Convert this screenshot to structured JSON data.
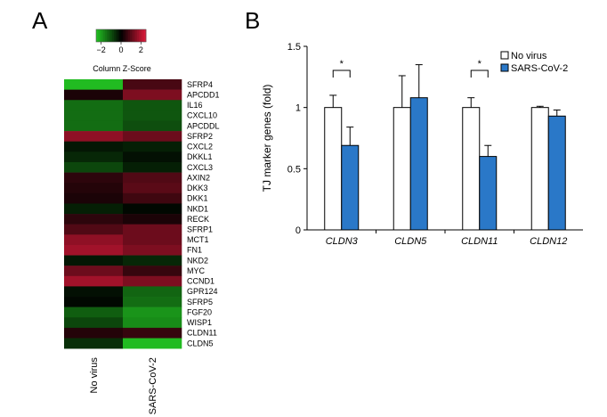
{
  "panels": {
    "a": "A",
    "b": "B"
  },
  "colors": {
    "low": "#22c322",
    "mid": "#000000",
    "high": "#e0193a",
    "no_virus": "#ffffff",
    "sars": "#2a78c8"
  },
  "chart_data": [
    {
      "type": "heatmap",
      "title": "",
      "colorkey": {
        "label": "Column Z-Score",
        "ticks": [
          -2,
          0,
          2
        ],
        "tick_labels": [
          "−2",
          "0",
          "2"
        ]
      },
      "columns": [
        "No virus",
        "SARS-CoV-2"
      ],
      "rows": [
        "SFRP4",
        "APCDD1",
        "IL16",
        "CXCL10",
        "APCDDL",
        "SFRP2",
        "CXCL2",
        "DKKL1",
        "CXCL3",
        "AXIN2",
        "DKK3",
        "DKK1",
        "NKD1",
        "RECK",
        "SFRP1",
        "MCT1",
        "FN1",
        "NKD2",
        "MYC",
        "CCND1",
        "GPR124",
        "SFRP5",
        "FGF20",
        "WISP1",
        "CLDN11",
        "CLDN5"
      ],
      "values": [
        [
          -2.4,
          0.8
        ],
        [
          0.3,
          1.4
        ],
        [
          -1.4,
          -1.1
        ],
        [
          -1.4,
          -1.1
        ],
        [
          -1.4,
          -1.0
        ],
        [
          1.6,
          1.2
        ],
        [
          -0.3,
          -0.4
        ],
        [
          -0.5,
          -0.2
        ],
        [
          -0.9,
          -0.4
        ],
        [
          0.5,
          0.9
        ],
        [
          0.4,
          1.0
        ],
        [
          0.3,
          0.7
        ],
        [
          -0.4,
          -0.1
        ],
        [
          0.5,
          0.3
        ],
        [
          0.9,
          1.2
        ],
        [
          1.6,
          1.2
        ],
        [
          1.8,
          1.4
        ],
        [
          -0.3,
          -0.5
        ],
        [
          1.2,
          0.6
        ],
        [
          1.8,
          1.4
        ],
        [
          -0.2,
          -1.3
        ],
        [
          -0.1,
          -1.4
        ],
        [
          -1.2,
          -1.9
        ],
        [
          -0.9,
          -1.8
        ],
        [
          0.4,
          0.6
        ],
        [
          -0.6,
          -2.4
        ]
      ]
    },
    {
      "type": "bar",
      "title": "",
      "categories": [
        "CLDN3",
        "CLDN5",
        "CLDN11",
        "CLDN12"
      ],
      "ylabel": "TJ marker genes (fold)",
      "xlabel": "",
      "ylim": [
        0,
        1.5
      ],
      "yticks": [
        0,
        0.5,
        1,
        1.5
      ],
      "ytick_labels": [
        "0",
        "0.5",
        "1",
        "1.5"
      ],
      "legend_position": "top-right",
      "series": [
        {
          "name": "No virus",
          "values": [
            1.0,
            1.0,
            1.0,
            1.0
          ],
          "errors": [
            0.1,
            0.26,
            0.08,
            0.01
          ]
        },
        {
          "name": "SARS-CoV-2",
          "values": [
            0.69,
            1.08,
            0.6,
            0.93
          ],
          "errors": [
            0.15,
            0.27,
            0.09,
            0.05
          ]
        }
      ],
      "significance": [
        {
          "category_index": 0,
          "label": "*"
        },
        {
          "category_index": 2,
          "label": "*"
        }
      ]
    }
  ]
}
